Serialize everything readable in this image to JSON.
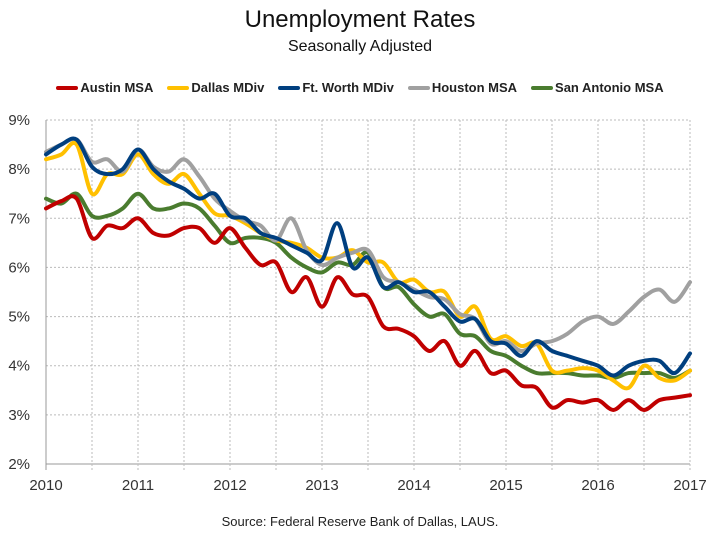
{
  "chart_data": {
    "type": "line",
    "title": "Unemployment Rates",
    "subtitle": "Seasonally Adjusted",
    "source": "Source:  Federal Reserve Bank of Dallas, LAUS.",
    "xlabel": "",
    "ylabel": "",
    "xlim": [
      2010,
      2017
    ],
    "ylim": [
      2,
      9
    ],
    "x_ticks": [
      "2010",
      "2011",
      "2012",
      "2013",
      "2014",
      "2015",
      "2016",
      "2017"
    ],
    "y_ticks": [
      "2%",
      "3%",
      "4%",
      "5%",
      "6%",
      "7%",
      "8%",
      "9%"
    ],
    "grid": true,
    "legend_position": "top",
    "x_step_months": 2,
    "series": [
      {
        "name": "Austin MSA",
        "color": "#c00000",
        "values": [
          7.2,
          7.35,
          7.4,
          6.6,
          6.85,
          6.8,
          7.0,
          6.7,
          6.65,
          6.8,
          6.8,
          6.5,
          6.8,
          6.4,
          6.05,
          6.1,
          5.5,
          5.8,
          5.2,
          5.8,
          5.45,
          5.4,
          4.8,
          4.75,
          4.6,
          4.3,
          4.5,
          4.0,
          4.3,
          3.85,
          3.9,
          3.6,
          3.55,
          3.15,
          3.3,
          3.25,
          3.3,
          3.1,
          3.3,
          3.1,
          3.3,
          3.35,
          3.4
        ]
      },
      {
        "name": "Dallas MDiv",
        "color": "#ffc000",
        "values": [
          8.2,
          8.3,
          8.5,
          7.5,
          7.9,
          7.9,
          8.3,
          7.9,
          7.7,
          7.9,
          7.5,
          7.1,
          7.05,
          6.9,
          6.7,
          6.55,
          6.5,
          6.4,
          6.2,
          6.2,
          6.35,
          6.1,
          6.1,
          5.7,
          5.75,
          5.5,
          5.5,
          5.0,
          5.2,
          4.55,
          4.6,
          4.4,
          4.45,
          3.9,
          3.9,
          3.95,
          3.9,
          3.7,
          3.55,
          4.0,
          3.75,
          3.7,
          3.9
        ]
      },
      {
        "name": "Ft. Worth MDiv",
        "color": "#003f7f",
        "values": [
          8.3,
          8.5,
          8.6,
          8.05,
          7.9,
          8.0,
          8.4,
          8.0,
          7.75,
          7.6,
          7.4,
          7.5,
          7.05,
          7.0,
          6.7,
          6.6,
          6.45,
          6.3,
          6.15,
          6.9,
          6.0,
          6.2,
          5.6,
          5.7,
          5.5,
          5.5,
          5.2,
          4.9,
          4.95,
          4.5,
          4.45,
          4.2,
          4.5,
          4.3,
          4.2,
          4.1,
          4.0,
          3.8,
          4.0,
          4.1,
          4.1,
          3.85,
          4.25
        ]
      },
      {
        "name": "Houston MSA",
        "color": "#a0a0a0",
        "values": [
          8.35,
          8.5,
          8.6,
          8.15,
          8.2,
          7.95,
          8.4,
          8.05,
          7.95,
          8.2,
          7.85,
          7.4,
          7.15,
          6.95,
          6.85,
          6.55,
          7.0,
          6.35,
          6.05,
          6.2,
          6.3,
          6.35,
          5.8,
          5.7,
          5.55,
          5.4,
          5.35,
          5.05,
          4.95,
          4.45,
          4.5,
          4.3,
          4.45,
          4.5,
          4.65,
          4.9,
          5.0,
          4.85,
          5.1,
          5.4,
          5.55,
          5.3,
          5.7
        ]
      },
      {
        "name": "San Antonio MSA",
        "color": "#4a7c2f",
        "values": [
          7.4,
          7.3,
          7.5,
          7.05,
          7.05,
          7.2,
          7.5,
          7.2,
          7.2,
          7.3,
          7.2,
          6.85,
          6.5,
          6.6,
          6.6,
          6.5,
          6.2,
          6.0,
          5.9,
          6.1,
          6.05,
          6.3,
          5.6,
          5.6,
          5.25,
          5.0,
          5.05,
          4.65,
          4.6,
          4.3,
          4.2,
          4.0,
          3.85,
          3.85,
          3.85,
          3.8,
          3.8,
          3.75,
          3.85,
          3.85,
          3.85,
          3.75,
          3.9
        ]
      }
    ]
  }
}
